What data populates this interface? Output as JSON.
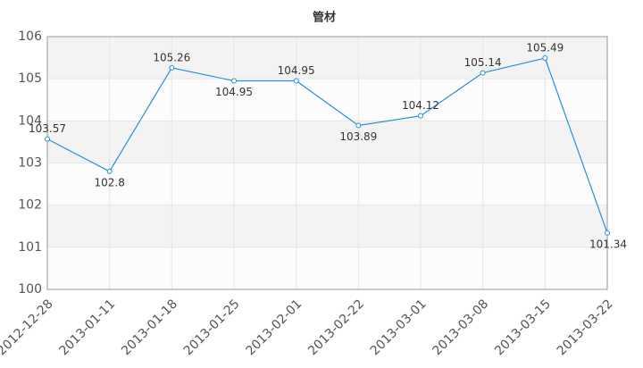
{
  "chart_data": {
    "type": "line",
    "title": "管材",
    "categories": [
      "2012-12-28",
      "2013-01-11",
      "2013-01-18",
      "2013-01-25",
      "2013-02-01",
      "2013-02-22",
      "2013-03-01",
      "2013-03-08",
      "2013-03-15",
      "2013-03-22"
    ],
    "series": [
      {
        "name": "管材",
        "color": "#2a8fcf",
        "values": [
          103.57,
          102.8,
          105.26,
          104.95,
          104.95,
          103.89,
          104.12,
          105.14,
          105.49,
          101.34
        ]
      }
    ],
    "ylim": [
      100,
      106
    ],
    "yticks": [
      100,
      101,
      102,
      103,
      104,
      105,
      106
    ],
    "grid": true
  }
}
